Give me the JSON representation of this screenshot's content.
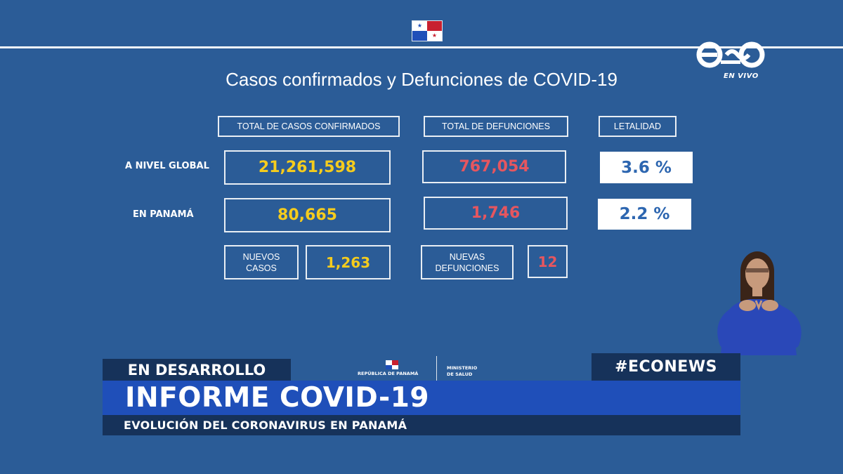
{
  "broadcast": {
    "channel_logo": "eco-logo",
    "live_label": "EN VIVO"
  },
  "dashboard": {
    "title": "Casos confirmados y Defunciones de COVID-19",
    "headers": {
      "confirmed": "TOTAL DE CASOS CONFIRMADOS",
      "deaths": "TOTAL DE DEFUNCIONES",
      "lethality": "LETALIDAD"
    },
    "global": {
      "label": "A NIVEL GLOBAL",
      "confirmed": "21,261,598",
      "deaths": "767,054",
      "lethality": "3.6 %"
    },
    "panama": {
      "label": "EN PANAMÁ",
      "confirmed": "80,665",
      "deaths": "1,746",
      "lethality": "2.2 %"
    },
    "new_cases": {
      "label_line1": "NUEVOS",
      "label_line2": "CASOS",
      "value": "1,263"
    },
    "new_deaths": {
      "label_line1": "NUEVAS",
      "label_line2": "DEFUNCIONES",
      "value": "12"
    }
  },
  "lower_third": {
    "tag": "EN DESARROLLO",
    "hashtag": "#ECONEWS",
    "headline": "INFORME COVID-19",
    "subheadline": "EVOLUCIÓN DEL CORONAVIRUS EN PANAMÁ",
    "gov_left": "REPÚBLICA DE PANAMÁ",
    "gov_right_line1": "MINISTERIO",
    "gov_right_line2": "DE SALUD"
  },
  "colors": {
    "background": "#2b5c97",
    "confirmed_value": "#f5cc1d",
    "deaths_value": "#e6565f",
    "lethality_value": "#2d66b0",
    "banner_blue": "#1f4fb9",
    "banner_dark": "#16325a"
  }
}
